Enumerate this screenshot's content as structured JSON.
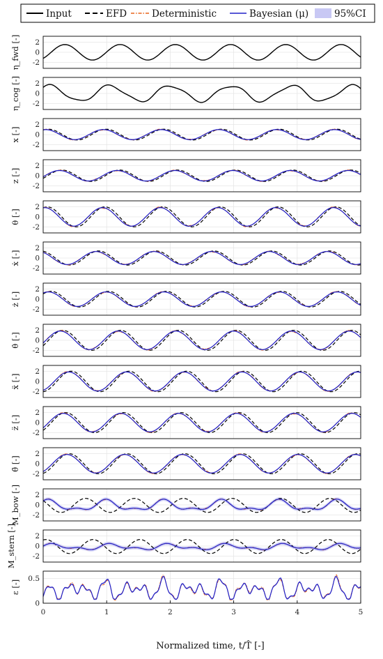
{
  "legend": {
    "input": "Input",
    "efd": "EFD",
    "deterministic": "Deterministic",
    "bayesian": "Bayesian (μ)",
    "ci": "95%CI"
  },
  "colors": {
    "input": "#000000",
    "efd": "#000000",
    "deterministic": "#e8641a",
    "bayesian": "#2020c8",
    "ci": "#c8c8f4",
    "grid": "#e6e6e6"
  },
  "chart_data": {
    "type": "line",
    "xlabel": "Normalized time, t/T̂ [-]",
    "xlim": [
      0,
      5
    ],
    "xticks": [
      "0",
      "1",
      "2",
      "3",
      "4",
      "5"
    ],
    "grid": true,
    "legend_position": "top",
    "panels": [
      {
        "ylabel": "η_fwd [-]",
        "ylim": [
          -3.2,
          3.2
        ],
        "yticks": [
          "2",
          "0",
          "-2"
        ],
        "series": [
          "Input"
        ]
      },
      {
        "ylabel": "η_cog [-]",
        "ylim": [
          -3.2,
          3.2
        ],
        "yticks": [
          "2",
          "0",
          "-2"
        ],
        "series": [
          "Input"
        ]
      },
      {
        "ylabel": "x [-]",
        "ylim": [
          -3.2,
          3.2
        ],
        "yticks": [
          "2",
          "0",
          "-2"
        ],
        "series": [
          "EFD",
          "Deterministic",
          "Bayesian (μ)",
          "95%CI"
        ]
      },
      {
        "ylabel": "z [-]",
        "ylim": [
          -3.2,
          3.2
        ],
        "yticks": [
          "2",
          "0",
          "-2"
        ],
        "series": [
          "EFD",
          "Deterministic",
          "Bayesian (μ)",
          "95%CI"
        ]
      },
      {
        "ylabel": "θ [-]",
        "ylim": [
          -3.2,
          3.2
        ],
        "yticks": [
          "2",
          "0",
          "-2"
        ],
        "series": [
          "EFD",
          "Deterministic",
          "Bayesian (μ)",
          "95%CI"
        ]
      },
      {
        "ylabel": "ẋ [-]",
        "ylim": [
          -3.2,
          3.2
        ],
        "yticks": [
          "2",
          "0",
          "-2"
        ],
        "series": [
          "EFD",
          "Deterministic",
          "Bayesian (μ)",
          "95%CI"
        ]
      },
      {
        "ylabel": "ż [-]",
        "ylim": [
          -3.2,
          3.2
        ],
        "yticks": [
          "2",
          "0",
          "-2"
        ],
        "series": [
          "EFD",
          "Deterministic",
          "Bayesian (μ)",
          "95%CI"
        ]
      },
      {
        "ylabel": "θ̇ [-]",
        "ylim": [
          -3.2,
          3.2
        ],
        "yticks": [
          "2",
          "0",
          "-2"
        ],
        "series": [
          "EFD",
          "Deterministic",
          "Bayesian (μ)",
          "95%CI"
        ]
      },
      {
        "ylabel": "ẍ [-]",
        "ylim": [
          -3.2,
          3.2
        ],
        "yticks": [
          "2",
          "0",
          "-2"
        ],
        "series": [
          "EFD",
          "Deterministic",
          "Bayesian (μ)",
          "95%CI"
        ]
      },
      {
        "ylabel": "z̈ [-]",
        "ylim": [
          -3.2,
          3.2
        ],
        "yticks": [
          "2",
          "0",
          "-2"
        ],
        "series": [
          "EFD",
          "Deterministic",
          "Bayesian (μ)",
          "95%CI"
        ]
      },
      {
        "ylabel": "θ̈ [-]",
        "ylim": [
          -3.2,
          3.2
        ],
        "yticks": [
          "2",
          "0",
          "-2"
        ],
        "series": [
          "EFD",
          "Deterministic",
          "Bayesian (μ)",
          "95%CI"
        ]
      },
      {
        "ylabel": "M_bow [-]",
        "ylim": [
          -3.2,
          3.2
        ],
        "yticks": [
          "2",
          "0",
          "-2"
        ],
        "series": [
          "EFD",
          "Deterministic",
          "Bayesian (μ)",
          "95%CI"
        ]
      },
      {
        "ylabel": "M_stern [-]",
        "ylim": [
          -3.2,
          3.2
        ],
        "yticks": [
          "2",
          "0",
          "-2"
        ],
        "series": [
          "EFD",
          "Deterministic",
          "Bayesian (μ)",
          "95%CI"
        ]
      },
      {
        "ylabel": "ε [-]",
        "ylim": [
          0,
          0.65
        ],
        "yticks": [
          "0.5",
          "0"
        ],
        "series": [
          "Deterministic",
          "Bayesian (μ)",
          "95%CI"
        ]
      }
    ],
    "series_peaks": [
      {
        "name": "Bayesian (μ)",
        "panel": "ε [-]",
        "x": [
          0.95,
          1.85,
          2.65,
          3.55,
          4.55
        ],
        "y": [
          0.5,
          0.6,
          0.52,
          0.48,
          0.42
        ]
      }
    ]
  }
}
